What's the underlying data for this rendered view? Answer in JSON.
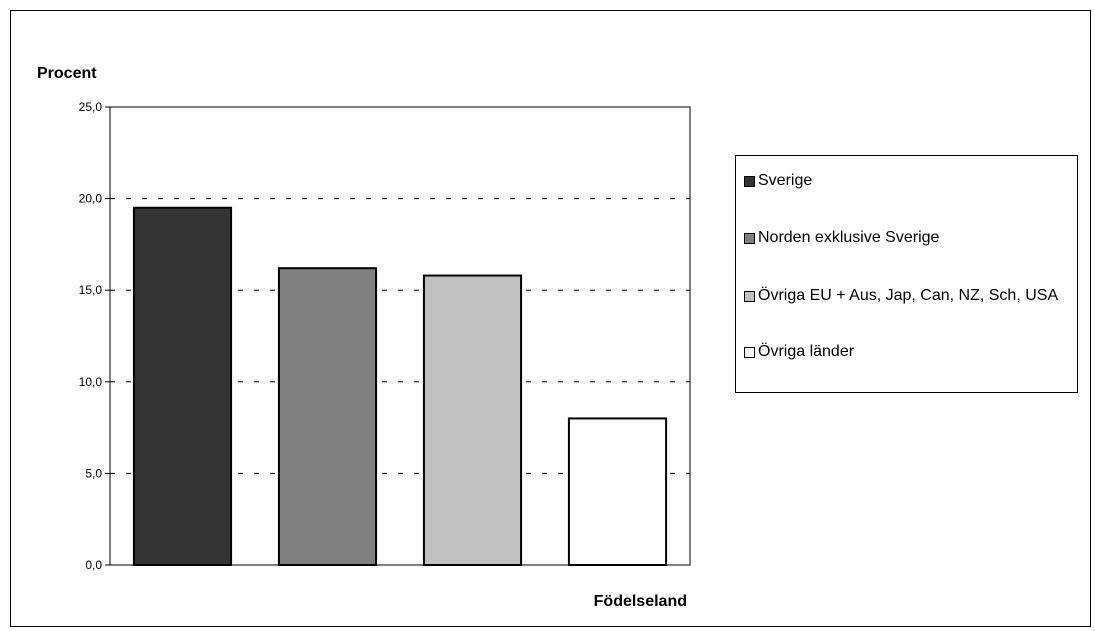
{
  "chart_data": {
    "type": "bar",
    "title": "",
    "ylabel": "Procent",
    "xlabel": "Födelseland",
    "ylim": [
      0,
      25
    ],
    "yticks": [
      "0,0",
      "5,0",
      "10,0",
      "15,0",
      "20,0",
      "25,0"
    ],
    "grid": "dashed horizontal",
    "legend_position": "right",
    "series": [
      {
        "name": "Sverige",
        "value": 19.5,
        "color": "#333333"
      },
      {
        "name": "Norden exklusive Sverige",
        "value": 16.2,
        "color": "#808080"
      },
      {
        "name": "Övriga EU + Aus, Jap, Can, NZ, Sch, USA",
        "value": 15.8,
        "color": "#c0c0c0"
      },
      {
        "name": "Övriga länder",
        "value": 8.0,
        "color": "#ffffff"
      }
    ]
  }
}
